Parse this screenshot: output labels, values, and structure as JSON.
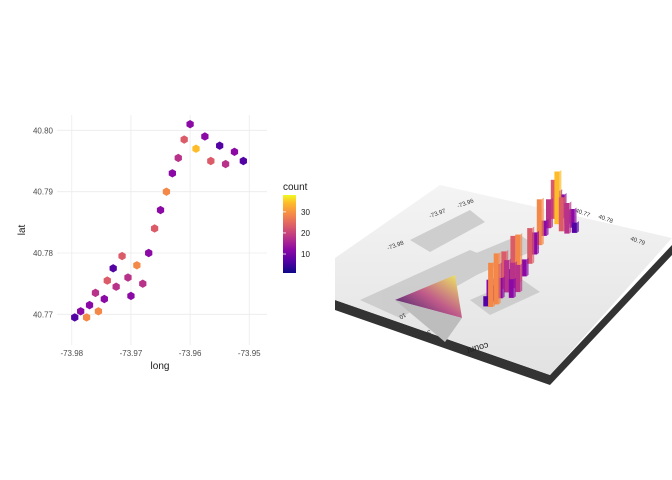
{
  "chart_data": [
    {
      "type": "heatmap",
      "title": "",
      "xlabel": "long",
      "ylabel": "lat",
      "x_ticks": [
        "-73.98",
        "-73.97",
        "-73.96",
        "-73.95"
      ],
      "x_tick_values": [
        -73.98,
        -73.97,
        -73.96,
        -73.95
      ],
      "y_ticks": [
        "40.77",
        "40.78",
        "40.79",
        "40.80"
      ],
      "y_tick_values": [
        40.77,
        40.78,
        40.79,
        40.8
      ],
      "xlim": [
        -73.9825,
        -73.947
      ],
      "ylim": [
        40.765,
        40.8025
      ],
      "legend": {
        "title": "count",
        "ticks": [
          "10",
          "20",
          "30"
        ],
        "tick_values": [
          10,
          20,
          30
        ],
        "range": [
          1,
          38
        ],
        "placement": "right"
      },
      "colormap": [
        "#0d0887",
        "#5302a3",
        "#8b0aa5",
        "#b83289",
        "#db5c68",
        "#f48849",
        "#febc2a",
        "#f0f921"
      ],
      "grid": true,
      "bins": [
        {
          "x": -73.9795,
          "y": 40.7695,
          "count": 6
        },
        {
          "x": -73.9785,
          "y": 40.7705,
          "count": 14
        },
        {
          "x": -73.9775,
          "y": 40.7695,
          "count": 26
        },
        {
          "x": -73.977,
          "y": 40.7715,
          "count": 9
        },
        {
          "x": -73.976,
          "y": 40.7735,
          "count": 18
        },
        {
          "x": -73.9755,
          "y": 40.7705,
          "count": 30
        },
        {
          "x": -73.9745,
          "y": 40.7725,
          "count": 12
        },
        {
          "x": -73.974,
          "y": 40.7755,
          "count": 22
        },
        {
          "x": -73.973,
          "y": 40.7775,
          "count": 8
        },
        {
          "x": -73.9725,
          "y": 40.7745,
          "count": 19
        },
        {
          "x": -73.9715,
          "y": 40.7795,
          "count": 24
        },
        {
          "x": -73.9705,
          "y": 40.776,
          "count": 15
        },
        {
          "x": -73.97,
          "y": 40.773,
          "count": 11
        },
        {
          "x": -73.969,
          "y": 40.778,
          "count": 28
        },
        {
          "x": -73.968,
          "y": 40.775,
          "count": 16
        },
        {
          "x": -73.967,
          "y": 40.78,
          "count": 10
        },
        {
          "x": -73.966,
          "y": 40.784,
          "count": 21
        },
        {
          "x": -73.965,
          "y": 40.787,
          "count": 13
        },
        {
          "x": -73.964,
          "y": 40.79,
          "count": 27
        },
        {
          "x": -73.963,
          "y": 40.793,
          "count": 9
        },
        {
          "x": -73.962,
          "y": 40.7955,
          "count": 17
        },
        {
          "x": -73.961,
          "y": 40.7985,
          "count": 23
        },
        {
          "x": -73.96,
          "y": 40.801,
          "count": 12
        },
        {
          "x": -73.959,
          "y": 40.797,
          "count": 31
        },
        {
          "x": -73.9575,
          "y": 40.799,
          "count": 14
        },
        {
          "x": -73.9565,
          "y": 40.795,
          "count": 20
        },
        {
          "x": -73.955,
          "y": 40.7975,
          "count": 8
        },
        {
          "x": -73.954,
          "y": 40.7945,
          "count": 18
        },
        {
          "x": -73.9525,
          "y": 40.7965,
          "count": 11
        },
        {
          "x": -73.951,
          "y": 40.795,
          "count": 6
        }
      ]
    },
    {
      "type": "bar",
      "title": "",
      "zlabel": "count",
      "legend": {
        "title": "count",
        "ticks": [
          "10",
          "20",
          "30"
        ],
        "tick_values": [
          10,
          20,
          30
        ]
      },
      "axis_ticks": [
        "-73.98",
        "-73.97",
        "-73.96",
        "-73.95",
        "40.77",
        "40.78",
        "40.79",
        "40.80"
      ],
      "colormap": [
        "#0d0887",
        "#5302a3",
        "#8b0aa5",
        "#b83289",
        "#db5c68",
        "#f48849",
        "#febc2a",
        "#f0f921"
      ]
    }
  ]
}
